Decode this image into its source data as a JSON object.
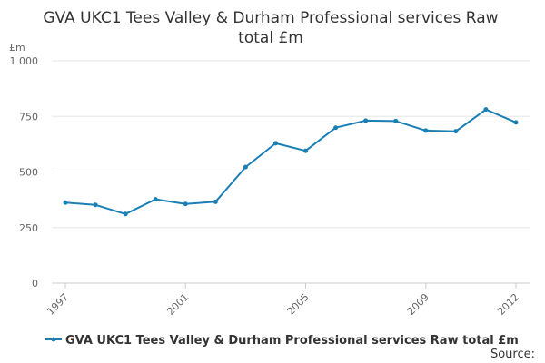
{
  "chart_data": {
    "type": "line",
    "title": "GVA UKC1 Tees Valley & Durham Professional services Raw total £m",
    "title_lines": [
      "GVA UKC1 Tees Valley & Durham Professional services Raw",
      "total £m"
    ],
    "ylabel": "£m",
    "ylim": [
      0,
      1000
    ],
    "yticks": [
      0,
      250,
      500,
      750,
      1000
    ],
    "ytick_labels": [
      "0",
      "250",
      "500",
      "750",
      "1 000"
    ],
    "xlim": [
      1997,
      2012
    ],
    "xticks": [
      1997,
      2001,
      2005,
      2009,
      2012
    ],
    "xtick_labels": [
      "1997",
      "2001",
      "2005",
      "2009",
      "2012"
    ],
    "grid": true,
    "legend_position": "bottom-left",
    "series": [
      {
        "name": "GVA UKC1 Tees Valley & Durham Professional services Raw total £m",
        "color": "#1a7fb5",
        "x": [
          1997,
          1998,
          1999,
          2000,
          2001,
          2002,
          2003,
          2004,
          2005,
          2006,
          2007,
          2008,
          2009,
          2010,
          2011,
          2012
        ],
        "values": [
          362,
          352,
          311,
          377,
          356,
          366,
          522,
          629,
          595,
          699,
          731,
          729,
          686,
          683,
          781,
          723
        ]
      }
    ]
  },
  "source_label": "Source:"
}
